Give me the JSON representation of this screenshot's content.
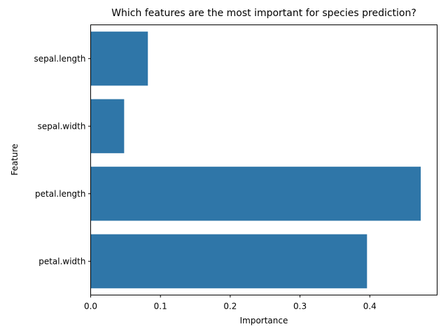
{
  "chart_data": {
    "type": "bar",
    "orientation": "horizontal",
    "title": "Which features are the most important for species prediction?",
    "xlabel": "Importance",
    "ylabel": "Feature",
    "categories": [
      "sepal.length",
      "sepal.width",
      "petal.length",
      "petal.width"
    ],
    "values": [
      0.082,
      0.048,
      0.473,
      0.396
    ],
    "xlim": [
      0,
      0.4965
    ],
    "xticks": [
      0.0,
      0.1,
      0.2,
      0.3,
      0.4
    ],
    "xtick_labels": [
      "0.0",
      "0.1",
      "0.2",
      "0.3",
      "0.4"
    ],
    "bar_color": "#2f76a8",
    "grid": false
  }
}
